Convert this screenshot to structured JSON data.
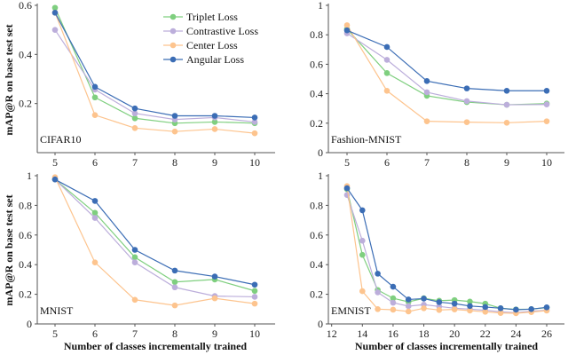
{
  "figure": {
    "xlabel": "Number of classes incrementally trained",
    "ylabel": "mAP@R on base test set"
  },
  "legend": {
    "placement": "top-right of first panel",
    "entries": [
      "Triplet Loss",
      "Contrastive Loss",
      "Center Loss",
      "Angular Loss"
    ]
  },
  "colors": {
    "Triplet Loss": "#7fcf7f",
    "Contrastive Loss": "#bcaedb",
    "Center Loss": "#fdc48e",
    "Angular Loss": "#3b6db5"
  },
  "chart_data": [
    {
      "type": "line",
      "title": "CIFAR10",
      "x": [
        5,
        6,
        7,
        8,
        9,
        10
      ],
      "xticks": [
        5,
        6,
        7,
        8,
        9,
        10
      ],
      "ylim": [
        0,
        0.6
      ],
      "yticks": [
        0.2,
        0.4,
        0.6
      ],
      "series": [
        {
          "name": "Triplet Loss",
          "values": [
            0.59,
            0.225,
            0.14,
            0.12,
            0.125,
            0.12
          ]
        },
        {
          "name": "Contrastive Loss",
          "values": [
            0.5,
            0.257,
            0.16,
            0.135,
            0.143,
            0.125
          ]
        },
        {
          "name": "Center Loss",
          "values": [
            0.57,
            0.153,
            0.1,
            0.086,
            0.096,
            0.079
          ]
        },
        {
          "name": "Angular Loss",
          "values": [
            0.57,
            0.268,
            0.18,
            0.15,
            0.15,
            0.143
          ]
        }
      ]
    },
    {
      "type": "line",
      "title": "Fashion-MNIST",
      "x": [
        5,
        6,
        7,
        8,
        9,
        10
      ],
      "xticks": [
        5,
        6,
        7,
        8,
        9,
        10
      ],
      "ylim": [
        0,
        1
      ],
      "yticks": [
        0,
        0.2,
        0.4,
        0.6,
        0.8,
        1
      ],
      "series": [
        {
          "name": "Triplet Loss",
          "values": [
            0.84,
            0.54,
            0.386,
            0.343,
            0.325,
            0.333
          ]
        },
        {
          "name": "Contrastive Loss",
          "values": [
            0.81,
            0.63,
            0.41,
            0.35,
            0.325,
            0.327
          ]
        },
        {
          "name": "Center Loss",
          "values": [
            0.865,
            0.42,
            0.213,
            0.207,
            0.203,
            0.213
          ]
        },
        {
          "name": "Angular Loss",
          "values": [
            0.83,
            0.717,
            0.486,
            0.436,
            0.42,
            0.42
          ]
        }
      ]
    },
    {
      "type": "line",
      "title": "MNIST",
      "x": [
        5,
        6,
        7,
        8,
        9,
        10
      ],
      "xticks": [
        5,
        6,
        7,
        8,
        9,
        10
      ],
      "ylim": [
        0,
        1
      ],
      "yticks": [
        0,
        0.2,
        0.4,
        0.6,
        0.8,
        1
      ],
      "series": [
        {
          "name": "Triplet Loss",
          "values": [
            0.975,
            0.75,
            0.45,
            0.283,
            0.3,
            0.223
          ]
        },
        {
          "name": "Contrastive Loss",
          "values": [
            0.975,
            0.715,
            0.415,
            0.247,
            0.188,
            0.183
          ]
        },
        {
          "name": "Center Loss",
          "values": [
            0.99,
            0.415,
            0.163,
            0.125,
            0.173,
            0.137
          ]
        },
        {
          "name": "Angular Loss",
          "values": [
            0.975,
            0.83,
            0.5,
            0.36,
            0.32,
            0.265
          ]
        }
      ]
    },
    {
      "type": "line",
      "title": "EMNIST",
      "x": [
        13,
        14,
        15,
        16,
        17,
        18,
        19,
        20,
        21,
        22,
        23,
        24,
        25,
        26
      ],
      "xticks": [
        12,
        14,
        16,
        18,
        20,
        22,
        24,
        26
      ],
      "ylim": [
        0,
        1
      ],
      "yticks": [
        0,
        0.2,
        0.4,
        0.6,
        0.8,
        1
      ],
      "series": [
        {
          "name": "Triplet Loss",
          "values": [
            0.91,
            0.466,
            0.229,
            0.173,
            0.149,
            0.173,
            0.157,
            0.161,
            0.151,
            0.137,
            0.106,
            0.098,
            0.1,
            0.11
          ]
        },
        {
          "name": "Contrastive Loss",
          "values": [
            0.87,
            0.562,
            0.213,
            0.143,
            0.12,
            0.13,
            0.118,
            0.106,
            0.1,
            0.092,
            0.082,
            0.076,
            0.086,
            0.092
          ]
        },
        {
          "name": "Center Loss",
          "values": [
            0.93,
            0.221,
            0.1,
            0.096,
            0.084,
            0.106,
            0.094,
            0.098,
            0.09,
            0.082,
            0.074,
            0.072,
            0.08,
            0.09
          ]
        },
        {
          "name": "Angular Loss",
          "values": [
            0.916,
            0.767,
            0.339,
            0.251,
            0.165,
            0.171,
            0.147,
            0.137,
            0.121,
            0.114,
            0.106,
            0.096,
            0.1,
            0.112
          ]
        }
      ]
    }
  ]
}
